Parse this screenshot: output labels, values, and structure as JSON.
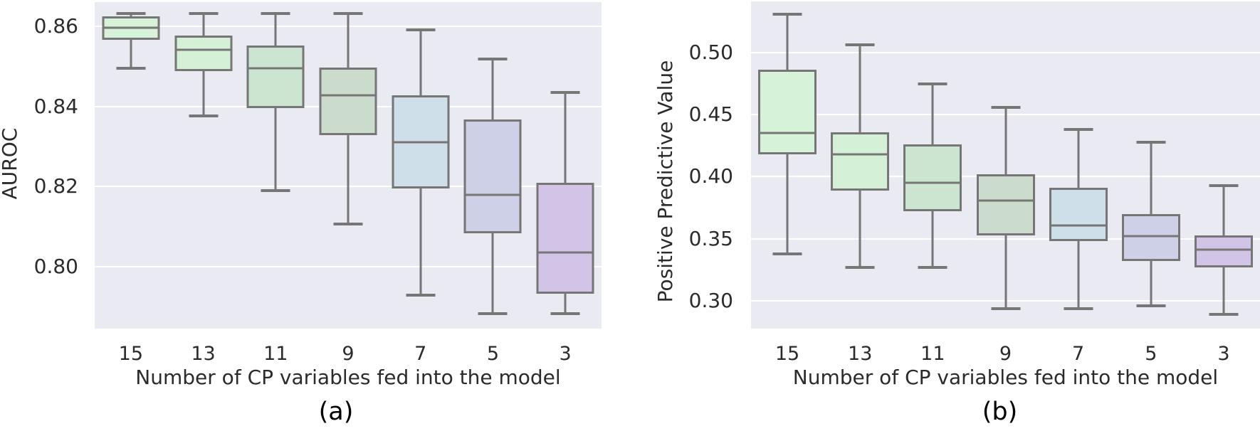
{
  "figure": {
    "background": "#ffffff",
    "panel_background": "#eaeaf2",
    "grid_color": "#ffffff",
    "box_line_color": "#767676",
    "text_color": "#2b2b2b"
  },
  "chart_data": [
    {
      "type": "boxplot",
      "caption": "(a)",
      "ylabel": "AUROC",
      "xlabel": "Number of CP variables fed into the model",
      "categories": [
        "15",
        "13",
        "11",
        "9",
        "7",
        "5",
        "3"
      ],
      "ytick_labels": [
        "0.86",
        "0.84",
        "0.82",
        "0.80"
      ],
      "yticks": [
        0.86,
        0.84,
        0.82,
        0.8
      ],
      "ylim": [
        0.7846,
        0.866
      ],
      "grid": true,
      "legend": "none",
      "boxes": [
        {
          "label": "15",
          "whislo": 0.8495,
          "q1": 0.8566,
          "med": 0.8596,
          "q3": 0.8625,
          "whishi": 0.8632,
          "fill": "#d6f2d9"
        },
        {
          "label": "13",
          "whislo": 0.8376,
          "q1": 0.8488,
          "med": 0.8541,
          "q3": 0.8577,
          "whishi": 0.8632,
          "fill": "#d4f1d8"
        },
        {
          "label": "11",
          "whislo": 0.819,
          "q1": 0.8396,
          "med": 0.8495,
          "q3": 0.8552,
          "whishi": 0.8632,
          "fill": "#cce5d0"
        },
        {
          "label": "9",
          "whislo": 0.8107,
          "q1": 0.8328,
          "med": 0.8428,
          "q3": 0.8497,
          "whishi": 0.8632,
          "fill": "#cbdccd"
        },
        {
          "label": "7",
          "whislo": 0.7929,
          "q1": 0.8195,
          "med": 0.8311,
          "q3": 0.8428,
          "whishi": 0.8591,
          "fill": "#cfdfe9"
        },
        {
          "label": "5",
          "whislo": 0.7883,
          "q1": 0.8083,
          "med": 0.8179,
          "q3": 0.8367,
          "whishi": 0.8518,
          "fill": "#cdd0e7"
        },
        {
          "label": "3",
          "whislo": 0.7883,
          "q1": 0.7933,
          "med": 0.8036,
          "q3": 0.821,
          "whishi": 0.8435,
          "fill": "#d1c4e7"
        }
      ]
    },
    {
      "type": "boxplot",
      "caption": "(b)",
      "ylabel": "Positive Predictive Value",
      "xlabel": "Number of CP variables fed into the model",
      "categories": [
        "15",
        "13",
        "11",
        "9",
        "7",
        "5",
        "3"
      ],
      "ytick_labels": [
        "0.50",
        "0.45",
        "0.40",
        "0.35",
        "0.30"
      ],
      "yticks": [
        0.5,
        0.45,
        0.4,
        0.35,
        0.3
      ],
      "ylim": [
        0.2777,
        0.5412
      ],
      "grid": true,
      "legend": "none",
      "boxes": [
        {
          "label": "15",
          "whislo": 0.338,
          "q1": 0.418,
          "med": 0.435,
          "q3": 0.486,
          "whishi": 0.531,
          "fill": "#d6f2d9"
        },
        {
          "label": "13",
          "whislo": 0.327,
          "q1": 0.389,
          "med": 0.418,
          "q3": 0.436,
          "whishi": 0.506,
          "fill": "#d4f1d8"
        },
        {
          "label": "11",
          "whislo": 0.327,
          "q1": 0.372,
          "med": 0.395,
          "q3": 0.426,
          "whishi": 0.475,
          "fill": "#cce5d0"
        },
        {
          "label": "9",
          "whislo": 0.294,
          "q1": 0.353,
          "med": 0.381,
          "q3": 0.402,
          "whishi": 0.456,
          "fill": "#cbdccd"
        },
        {
          "label": "7",
          "whislo": 0.294,
          "q1": 0.348,
          "med": 0.361,
          "q3": 0.391,
          "whishi": 0.438,
          "fill": "#cfdfe9"
        },
        {
          "label": "5",
          "whislo": 0.296,
          "q1": 0.332,
          "med": 0.352,
          "q3": 0.37,
          "whishi": 0.428,
          "fill": "#cdd0e7"
        },
        {
          "label": "3",
          "whislo": 0.289,
          "q1": 0.327,
          "med": 0.341,
          "q3": 0.353,
          "whishi": 0.393,
          "fill": "#d1c4e7"
        }
      ]
    }
  ]
}
